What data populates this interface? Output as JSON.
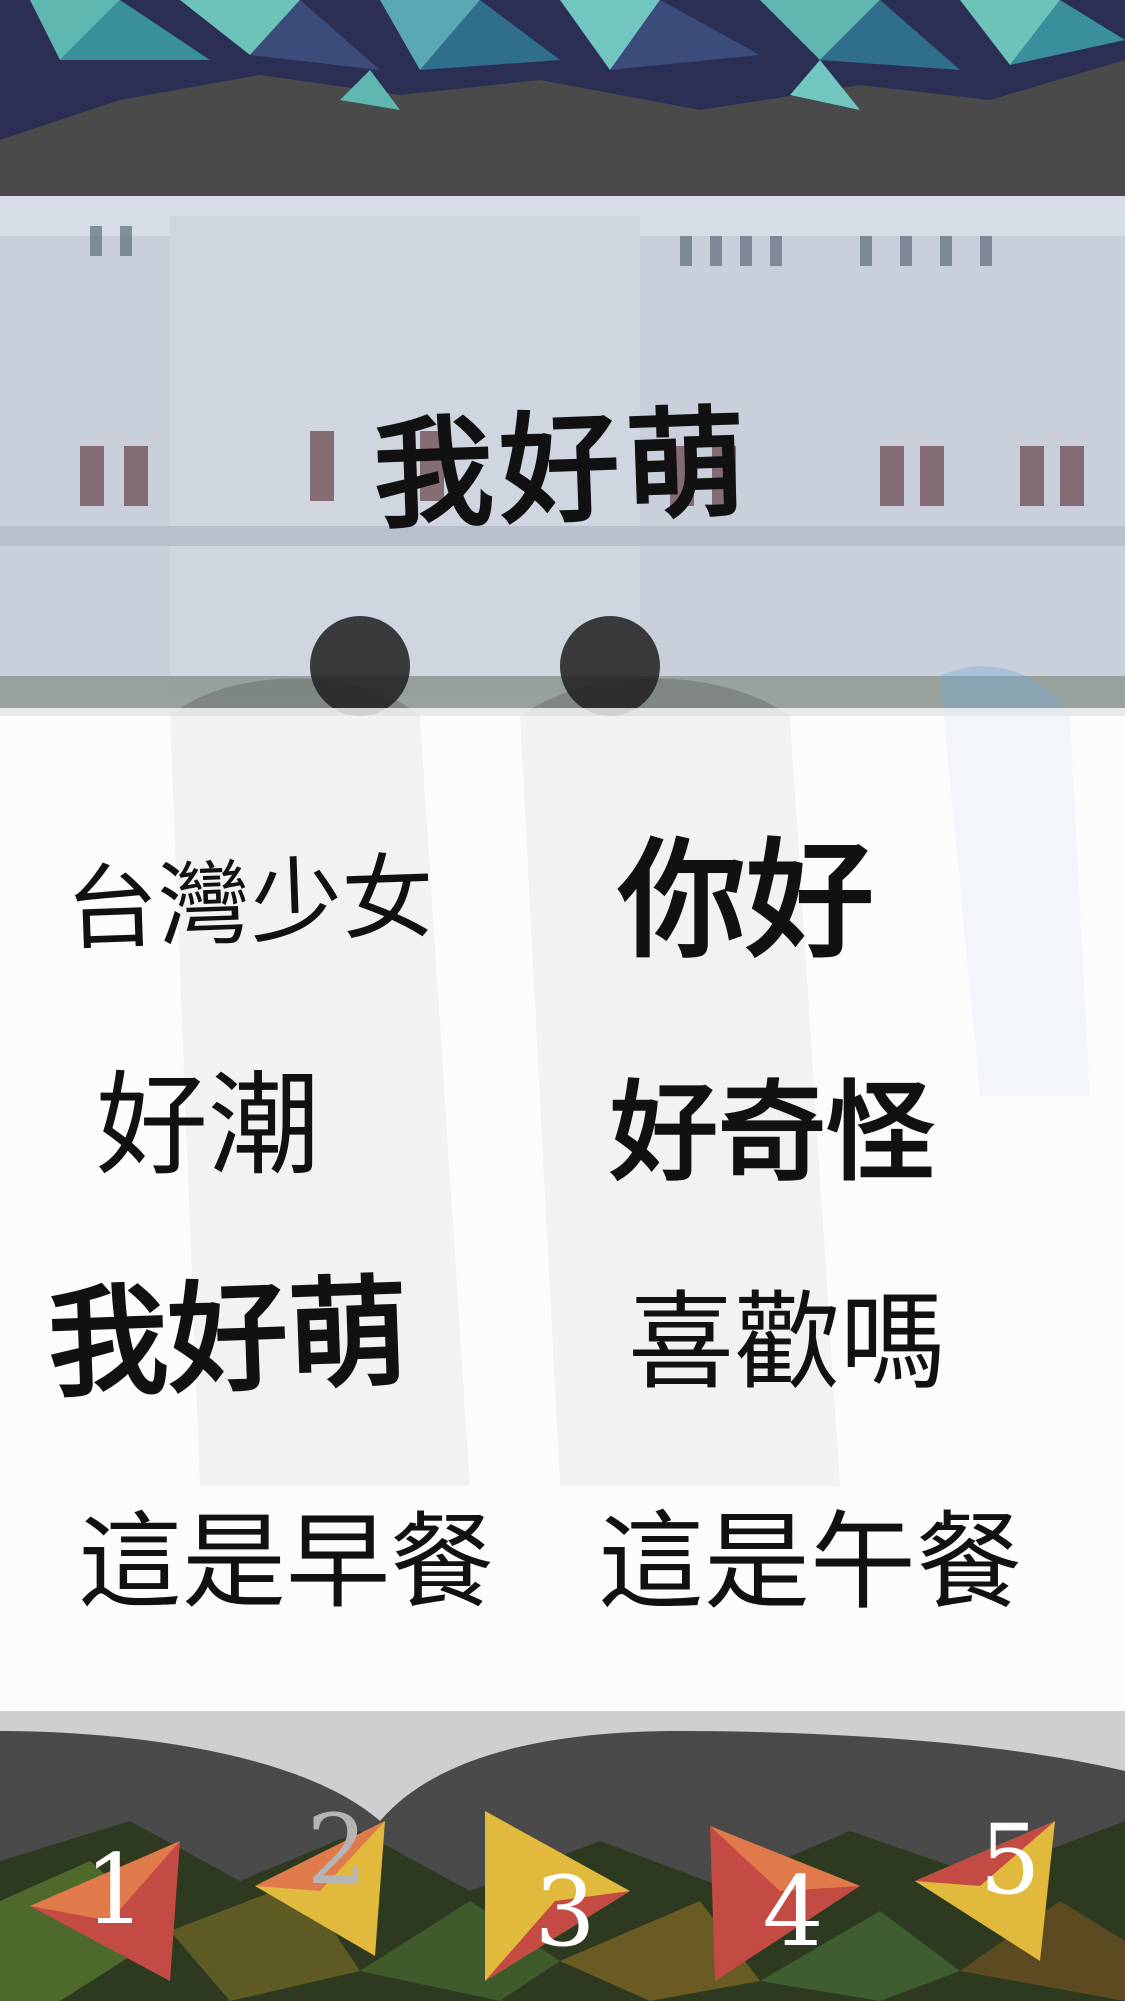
{
  "preview": {
    "sticker_text": "我好萌"
  },
  "stickers": [
    "台灣少女",
    "你好",
    "好潮",
    "好奇怪",
    "我好萌",
    "喜歡嗎",
    "這是早餐",
    "這是午餐"
  ],
  "pagination": {
    "pages": [
      "1",
      "2",
      "3",
      "4",
      "5"
    ],
    "current_page": "2"
  },
  "colors": {
    "frame_gray": "#4a4a4a",
    "triangle_teal": "#5fb7b0",
    "triangle_navy": "#2c2f54",
    "arrow_orange": "#e07a4a",
    "arrow_yellow": "#e1b93d",
    "arrow_red": "#c44b43"
  }
}
